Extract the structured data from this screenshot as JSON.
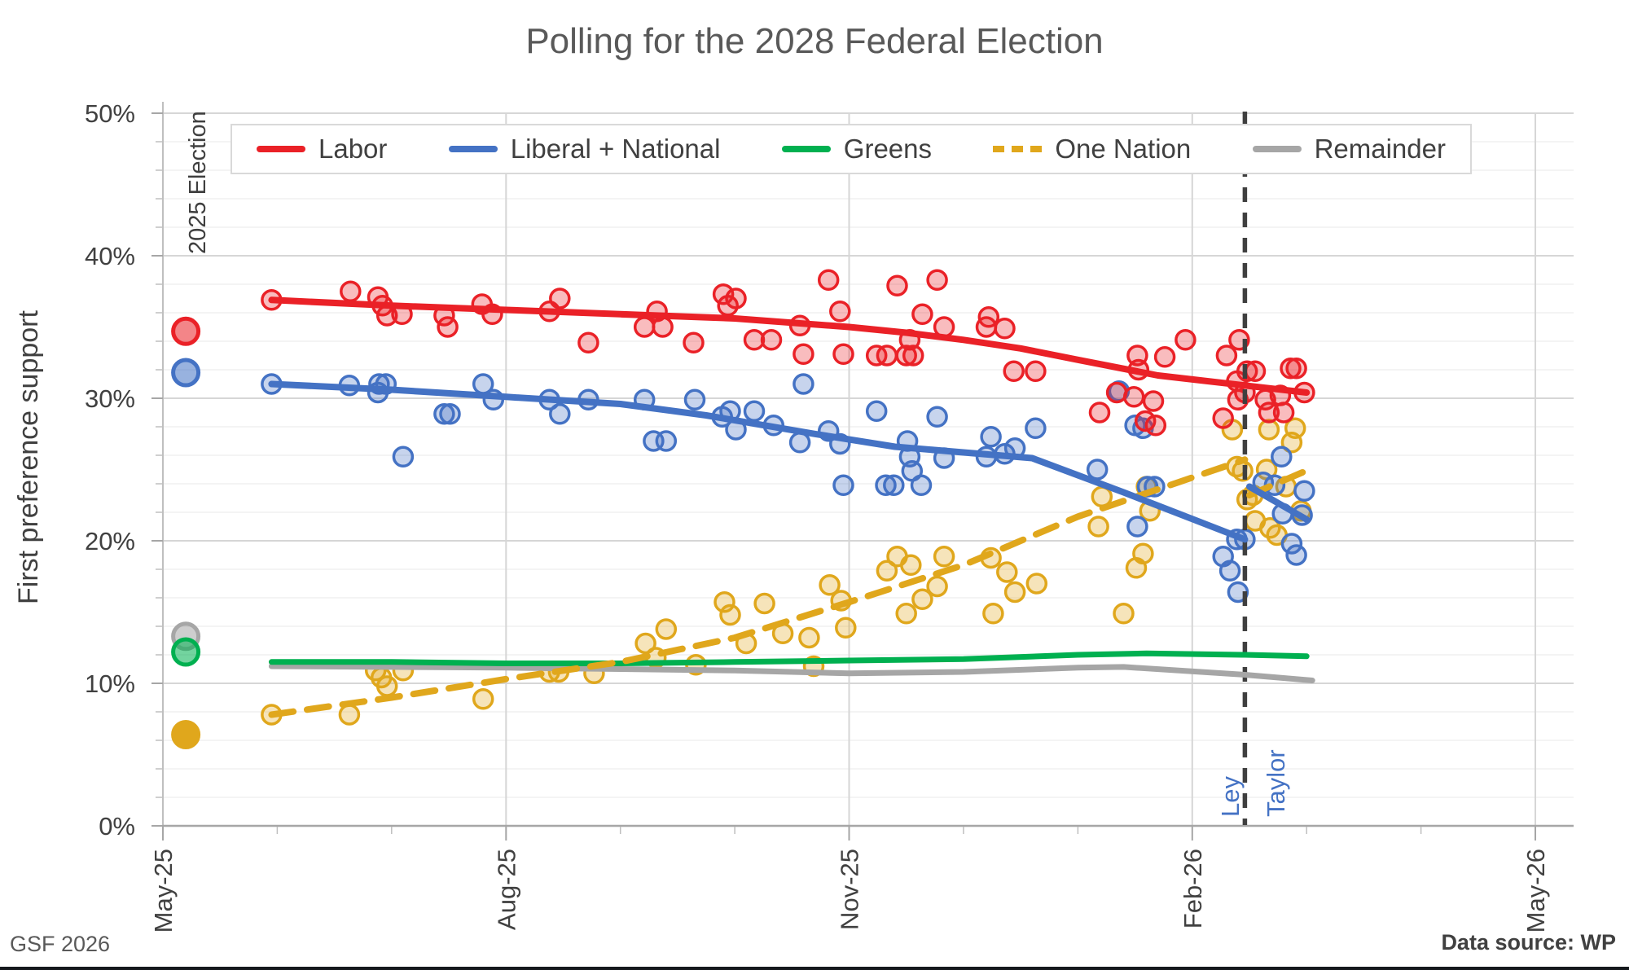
{
  "title": "Polling for the 2028 Federal Election",
  "footer": {
    "left": "GSF 2026",
    "right": "Data source: WP"
  },
  "legend": [
    {
      "label": "Labor",
      "color": "#ea2127",
      "dashed": false
    },
    {
      "label": "Liberal + National",
      "color": "#4472c4",
      "dashed": false
    },
    {
      "label": "Greens",
      "color": "#00b050",
      "dashed": false
    },
    {
      "label": "One Nation",
      "color": "#e0a71c",
      "dashed": true
    },
    {
      "label": "Remainder",
      "color": "#a6a6a6",
      "dashed": false
    }
  ],
  "annotations": {
    "election_label": "2025 Election",
    "leader_left": "Ley",
    "leader_right": "Taylor",
    "leader_color": "#4472c4",
    "vline_month": 9.46
  },
  "chart_data": {
    "type": "scatter",
    "subtype": "polling scatter with trend lines",
    "title": "Polling for the 2028 Federal Election",
    "ylabel": "First preference support",
    "xlabel": "",
    "ylim": [
      0,
      50
    ],
    "y_tick_percent": [
      0,
      10,
      20,
      30,
      40,
      50
    ],
    "y_minor_step_percent": 2,
    "x_months_since_may25_lim": [
      0,
      12.33
    ],
    "x_ticks": [
      {
        "label": "May-25",
        "m": 0
      },
      {
        "label": "Aug-25",
        "m": 3
      },
      {
        "label": "Nov-25",
        "m": 6
      },
      {
        "label": "Feb-26",
        "m": 9
      },
      {
        "label": "May-26",
        "m": 12
      }
    ],
    "grid": {
      "h_major": true,
      "h_minor": true,
      "v_quarterly": true
    },
    "legend_position": "top inside",
    "election_marker_month": 0.2,
    "series": [
      {
        "name": "Labor",
        "color": "#ea2127",
        "style": "solid",
        "election_2025_value": 34.7,
        "trend": [
          [
            0.95,
            36.9
          ],
          [
            2,
            36.5
          ],
          [
            3,
            36.2
          ],
          [
            4,
            35.9
          ],
          [
            5,
            35.6
          ],
          [
            6,
            35.0
          ],
          [
            6.5,
            34.6
          ],
          [
            7,
            34.1
          ],
          [
            7.5,
            33.5
          ],
          [
            8,
            32.7
          ],
          [
            8.7,
            31.6
          ],
          [
            9.46,
            30.9
          ],
          [
            10.0,
            30.4
          ]
        ],
        "trend2": [],
        "scatter": [
          [
            0.95,
            36.9
          ],
          [
            1.64,
            37.5
          ],
          [
            1.88,
            37.1
          ],
          [
            1.92,
            36.5
          ],
          [
            1.96,
            35.8
          ],
          [
            2.09,
            35.9
          ],
          [
            2.46,
            35.8
          ],
          [
            2.49,
            35.0
          ],
          [
            2.79,
            36.6
          ],
          [
            2.88,
            35.9
          ],
          [
            3.38,
            36.1
          ],
          [
            3.47,
            37.0
          ],
          [
            3.72,
            33.9
          ],
          [
            4.21,
            35.0
          ],
          [
            4.32,
            36.1
          ],
          [
            4.37,
            35.0
          ],
          [
            4.64,
            33.9
          ],
          [
            4.9,
            37.3
          ],
          [
            4.94,
            36.5
          ],
          [
            5.01,
            37.0
          ],
          [
            5.17,
            34.1
          ],
          [
            5.32,
            34.1
          ],
          [
            5.57,
            35.1
          ],
          [
            5.6,
            33.1
          ],
          [
            5.82,
            38.3
          ],
          [
            5.92,
            36.1
          ],
          [
            5.95,
            33.1
          ],
          [
            6.24,
            33.0
          ],
          [
            6.33,
            33.0
          ],
          [
            6.42,
            37.9
          ],
          [
            6.5,
            33.0
          ],
          [
            6.53,
            34.1
          ],
          [
            6.56,
            33.0
          ],
          [
            6.64,
            35.9
          ],
          [
            6.77,
            38.3
          ],
          [
            6.83,
            35.0
          ],
          [
            7.2,
            35.0
          ],
          [
            7.22,
            35.7
          ],
          [
            7.36,
            34.9
          ],
          [
            7.44,
            31.9
          ],
          [
            7.63,
            31.9
          ],
          [
            8.19,
            29.0
          ],
          [
            8.34,
            30.4
          ],
          [
            8.49,
            30.1
          ],
          [
            8.52,
            33.0
          ],
          [
            8.53,
            32.0
          ],
          [
            8.59,
            28.4
          ],
          [
            8.66,
            29.8
          ],
          [
            8.68,
            28.1
          ],
          [
            8.76,
            32.9
          ],
          [
            8.94,
            34.1
          ],
          [
            9.27,
            28.6
          ],
          [
            9.3,
            33.0
          ],
          [
            9.41,
            34.1
          ],
          [
            9.48,
            31.9
          ],
          [
            9.55,
            31.9
          ],
          [
            9.39,
            31.2
          ],
          [
            9.46,
            30.4
          ],
          [
            9.4,
            29.9
          ],
          [
            9.64,
            29.9
          ],
          [
            9.77,
            30.2
          ],
          [
            9.67,
            29.0
          ],
          [
            9.8,
            29.0
          ],
          [
            9.86,
            32.1
          ],
          [
            9.91,
            32.1
          ],
          [
            9.98,
            30.4
          ]
        ]
      },
      {
        "name": "Liberal + National",
        "color": "#4472c4",
        "style": "solid",
        "election_2025_value": 31.8,
        "trend": [
          [
            0.95,
            31.0
          ],
          [
            2,
            30.6
          ],
          [
            3,
            30.1
          ],
          [
            4,
            29.6
          ],
          [
            4.75,
            28.8
          ],
          [
            5.7,
            27.5
          ],
          [
            6.4,
            26.6
          ],
          [
            7,
            26.2
          ],
          [
            7.6,
            25.8
          ],
          [
            8.4,
            23.4
          ],
          [
            9.46,
            20.1
          ]
        ],
        "trend2": [
          [
            9.5,
            23.8
          ],
          [
            10.0,
            21.5
          ]
        ],
        "scatter": [
          [
            0.95,
            31.0
          ],
          [
            1.63,
            30.9
          ],
          [
            1.89,
            31.0
          ],
          [
            1.95,
            31.0
          ],
          [
            1.88,
            30.4
          ],
          [
            2.1,
            25.9
          ],
          [
            2.46,
            28.9
          ],
          [
            2.51,
            28.9
          ],
          [
            2.8,
            31.0
          ],
          [
            2.89,
            29.9
          ],
          [
            3.38,
            29.9
          ],
          [
            3.47,
            28.9
          ],
          [
            3.72,
            29.9
          ],
          [
            4.21,
            29.9
          ],
          [
            4.29,
            27.0
          ],
          [
            4.4,
            27.0
          ],
          [
            4.65,
            29.9
          ],
          [
            4.89,
            28.7
          ],
          [
            4.96,
            29.1
          ],
          [
            5.01,
            27.8
          ],
          [
            5.17,
            29.1
          ],
          [
            5.34,
            28.1
          ],
          [
            5.57,
            26.9
          ],
          [
            5.6,
            31.0
          ],
          [
            5.82,
            27.7
          ],
          [
            5.92,
            26.8
          ],
          [
            5.95,
            23.9
          ],
          [
            6.24,
            29.1
          ],
          [
            6.32,
            23.9
          ],
          [
            6.39,
            23.9
          ],
          [
            6.51,
            27.0
          ],
          [
            6.53,
            25.9
          ],
          [
            6.55,
            24.9
          ],
          [
            6.63,
            23.9
          ],
          [
            6.77,
            28.7
          ],
          [
            6.83,
            25.8
          ],
          [
            7.2,
            25.9
          ],
          [
            7.24,
            27.3
          ],
          [
            7.36,
            26.1
          ],
          [
            7.45,
            26.5
          ],
          [
            7.63,
            27.9
          ],
          [
            8.17,
            25.0
          ],
          [
            8.36,
            30.5
          ],
          [
            8.5,
            28.1
          ],
          [
            8.57,
            27.9
          ],
          [
            8.52,
            21.0
          ],
          [
            8.61,
            23.8
          ],
          [
            8.67,
            23.8
          ],
          [
            9.27,
            18.9
          ],
          [
            9.33,
            17.9
          ],
          [
            9.4,
            16.4
          ],
          [
            9.39,
            20.1
          ],
          [
            9.46,
            20.1
          ],
          [
            9.62,
            24.1
          ],
          [
            9.72,
            23.9
          ],
          [
            9.78,
            25.9
          ],
          [
            9.79,
            21.9
          ],
          [
            9.87,
            19.8
          ],
          [
            9.91,
            19.0
          ],
          [
            9.96,
            21.8
          ],
          [
            9.98,
            23.5
          ]
        ]
      },
      {
        "name": "Greens",
        "color": "#00b050",
        "style": "solid",
        "election_2025_value": 12.2,
        "trend": [
          [
            0.95,
            11.5
          ],
          [
            2,
            11.5
          ],
          [
            3,
            11.4
          ],
          [
            4,
            11.4
          ],
          [
            5,
            11.5
          ],
          [
            6,
            11.6
          ],
          [
            7,
            11.7
          ],
          [
            8,
            12.0
          ],
          [
            8.6,
            12.1
          ],
          [
            9.46,
            12.0
          ],
          [
            10.0,
            11.9
          ]
        ],
        "trend2": [],
        "scatter": []
      },
      {
        "name": "One Nation",
        "color": "#e0a71c",
        "style": "dashed",
        "election_2025_value": 6.4,
        "trend": [
          [
            0.95,
            7.8
          ],
          [
            2,
            9.0
          ],
          [
            3,
            10.3
          ],
          [
            4,
            11.5
          ],
          [
            5,
            13.2
          ],
          [
            6,
            15.7
          ],
          [
            7,
            18.3
          ],
          [
            8,
            21.7
          ],
          [
            9.46,
            25.7
          ]
        ],
        "trend2": [
          [
            9.5,
            23.2
          ],
          [
            10.05,
            25.1
          ]
        ],
        "scatter": [
          [
            0.95,
            7.8
          ],
          [
            1.63,
            7.8
          ],
          [
            1.86,
            10.9
          ],
          [
            1.91,
            10.4
          ],
          [
            1.96,
            9.8
          ],
          [
            2.1,
            10.9
          ],
          [
            2.8,
            8.9
          ],
          [
            3.38,
            10.8
          ],
          [
            3.46,
            10.8
          ],
          [
            3.77,
            10.7
          ],
          [
            4.22,
            12.8
          ],
          [
            4.31,
            11.8
          ],
          [
            4.4,
            13.8
          ],
          [
            4.66,
            11.3
          ],
          [
            4.91,
            15.7
          ],
          [
            4.96,
            14.8
          ],
          [
            5.1,
            12.8
          ],
          [
            5.26,
            15.6
          ],
          [
            5.42,
            13.5
          ],
          [
            5.65,
            13.2
          ],
          [
            5.69,
            11.2
          ],
          [
            5.83,
            16.9
          ],
          [
            5.93,
            15.8
          ],
          [
            5.97,
            13.9
          ],
          [
            6.33,
            17.9
          ],
          [
            6.42,
            18.9
          ],
          [
            6.5,
            14.9
          ],
          [
            6.54,
            18.3
          ],
          [
            6.64,
            15.9
          ],
          [
            6.77,
            16.8
          ],
          [
            6.83,
            18.9
          ],
          [
            7.24,
            18.8
          ],
          [
            7.26,
            14.9
          ],
          [
            7.38,
            17.8
          ],
          [
            7.45,
            16.4
          ],
          [
            7.64,
            17.0
          ],
          [
            8.18,
            21.0
          ],
          [
            8.21,
            23.1
          ],
          [
            8.4,
            14.9
          ],
          [
            8.51,
            18.1
          ],
          [
            8.57,
            19.1
          ],
          [
            8.6,
            23.8
          ],
          [
            8.63,
            22.1
          ],
          [
            9.35,
            27.8
          ],
          [
            9.39,
            25.2
          ],
          [
            9.44,
            24.9
          ],
          [
            9.48,
            22.9
          ],
          [
            9.53,
            23.2
          ],
          [
            9.55,
            21.4
          ],
          [
            9.65,
            25.0
          ],
          [
            9.67,
            27.8
          ],
          [
            9.68,
            20.9
          ],
          [
            9.74,
            20.4
          ],
          [
            9.82,
            23.8
          ],
          [
            9.87,
            26.9
          ],
          [
            9.9,
            27.9
          ],
          [
            9.95,
            22.1
          ]
        ]
      },
      {
        "name": "Remainder",
        "color": "#a6a6a6",
        "style": "solid",
        "election_2025_value": 13.3,
        "trend": [
          [
            0.95,
            11.2
          ],
          [
            2,
            11.15
          ],
          [
            3,
            11.1
          ],
          [
            4,
            11.0
          ],
          [
            5,
            10.9
          ],
          [
            6,
            10.7
          ],
          [
            7,
            10.8
          ],
          [
            8,
            11.1
          ],
          [
            8.4,
            11.15
          ],
          [
            9.46,
            10.6
          ],
          [
            10.05,
            10.2
          ]
        ],
        "trend2": [],
        "scatter": []
      }
    ]
  }
}
